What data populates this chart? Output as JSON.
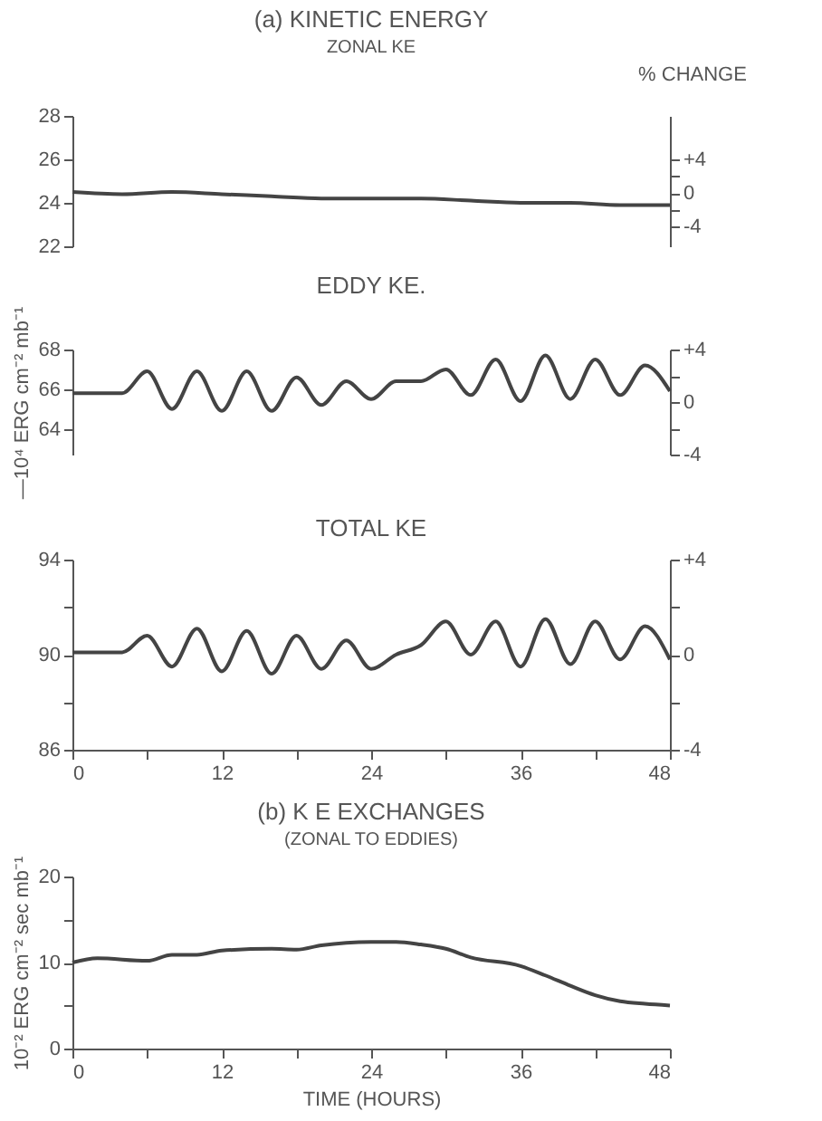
{
  "chart_data": [
    {
      "type": "line",
      "title": "(a) KINETIC ENERGY",
      "subtitle": "ZONAL KE",
      "y2label": "% CHANGE",
      "x": [
        0,
        4,
        8,
        12,
        16,
        20,
        24,
        28,
        32,
        36,
        40,
        44,
        48
      ],
      "series": [
        {
          "color": "#444444",
          "values": [
            24.5,
            24.4,
            24.5,
            24.4,
            24.3,
            24.2,
            24.2,
            24.2,
            24.1,
            24.0,
            24.0,
            23.9,
            23.9
          ]
        }
      ],
      "xlim": [
        0,
        48
      ],
      "ylim": [
        22,
        28
      ],
      "yticks": [
        22,
        24,
        26,
        28
      ],
      "y2lim": [
        -6.3,
        9.1
      ],
      "y2ticks": [
        {
          "value": 4,
          "label": "+4"
        },
        {
          "value": 2,
          "label": null
        },
        0,
        {
          "value": -2,
          "label": null
        },
        {
          "value": -4,
          "label": "-4"
        }
      ],
      "tick_labels": "y",
      "grid": false,
      "marker": "none",
      "line_style": "solid"
    },
    {
      "type": "line",
      "title": "EDDY KE.",
      "ylabel": "—10⁴ ERG cm⁻² mb⁻¹",
      "x": [
        0,
        4,
        6,
        8,
        10,
        12,
        14,
        16,
        18,
        20,
        22,
        24,
        26,
        28,
        30,
        32,
        34,
        36,
        38,
        40,
        42,
        44,
        46,
        48
      ],
      "series": [
        {
          "color": "#444444",
          "values": [
            65.8,
            65.8,
            66.9,
            65.0,
            66.9,
            64.9,
            66.9,
            64.9,
            66.6,
            65.2,
            66.4,
            65.5,
            66.4,
            66.4,
            67.0,
            65.7,
            67.5,
            65.4,
            67.7,
            65.5,
            67.5,
            65.7,
            67.2,
            65.9
          ]
        }
      ],
      "xlim": [
        0,
        48
      ],
      "ylim": [
        62.7,
        68
      ],
      "yticks": [
        64,
        66,
        68
      ],
      "y2lim": [
        -4,
        4
      ],
      "y2ticks": [
        {
          "value": 4,
          "label": "+4"
        },
        {
          "value": 2,
          "label": null
        },
        0,
        {
          "value": -2,
          "label": null
        },
        {
          "value": -4,
          "label": "-4"
        }
      ],
      "tick_labels": "y",
      "grid": false,
      "marker": "none",
      "line_style": "solid"
    },
    {
      "type": "line",
      "title": "TOTAL KE",
      "x": [
        0,
        4,
        6,
        8,
        10,
        12,
        14,
        16,
        18,
        20,
        22,
        24,
        26,
        28,
        30,
        32,
        34,
        36,
        38,
        40,
        42,
        44,
        46,
        48
      ],
      "series": [
        {
          "color": "#444444",
          "values": [
            90.1,
            90.1,
            90.8,
            89.5,
            91.1,
            89.3,
            91.0,
            89.2,
            90.8,
            89.4,
            90.6,
            89.4,
            90.0,
            90.4,
            91.4,
            90.0,
            91.4,
            89.5,
            91.5,
            89.6,
            91.4,
            89.8,
            91.2,
            89.8
          ]
        }
      ],
      "xlim": [
        0,
        48
      ],
      "xticks": [
        0,
        {
          "value": 6,
          "label": null
        },
        12,
        {
          "value": 18,
          "label": null
        },
        24,
        {
          "value": 30,
          "label": null
        },
        36,
        {
          "value": 42,
          "label": null
        },
        48
      ],
      "ylim": [
        86,
        94
      ],
      "yticks": [
        86,
        {
          "value": 88,
          "label": null
        },
        90,
        {
          "value": 92,
          "label": null
        },
        94
      ],
      "y2lim": [
        -4,
        4
      ],
      "y2ticks": [
        {
          "value": 4,
          "label": "+4"
        },
        {
          "value": 2,
          "label": null
        },
        0,
        {
          "value": -2,
          "label": null
        },
        {
          "value": -4,
          "label": "-4"
        }
      ],
      "grid": false,
      "marker": "none",
      "line_style": "solid"
    },
    {
      "type": "line",
      "title": "(b) K E EXCHANGES",
      "subtitle": "(ZONAL TO EDDIES)",
      "xlabel": "TIME (HOURS)",
      "ylabel": "10⁻² ERG cm⁻² sec mb⁻¹",
      "x": [
        0,
        2,
        6,
        8,
        10,
        12,
        16,
        18,
        20,
        24,
        26,
        28,
        30,
        32,
        36,
        38,
        40,
        42,
        44,
        46,
        48
      ],
      "series": [
        {
          "color": "#444444",
          "values": [
            10.0,
            10.5,
            10.2,
            10.9,
            10.9,
            11.4,
            11.6,
            11.5,
            12.0,
            12.4,
            12.4,
            12.1,
            11.6,
            10.6,
            9.6,
            8.5,
            7.3,
            6.2,
            5.5,
            5.2,
            5.0
          ]
        }
      ],
      "xlim": [
        0,
        48
      ],
      "xticks": [
        0,
        {
          "value": 6,
          "label": null
        },
        12,
        {
          "value": 18,
          "label": null
        },
        24,
        {
          "value": 30,
          "label": null
        },
        36,
        {
          "value": 42,
          "label": null
        },
        48
      ],
      "ylim": [
        0,
        20
      ],
      "yticks": [
        0,
        {
          "value": 5,
          "label": null
        },
        10,
        {
          "value": 15,
          "label": null
        },
        20
      ],
      "grid": false,
      "marker": "none",
      "line_style": "solid"
    }
  ]
}
